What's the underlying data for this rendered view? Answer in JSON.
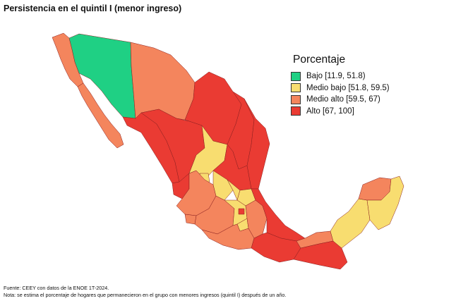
{
  "title": "Persistencia en el quintil I (menor ingreso)",
  "legend": {
    "title": "Porcentaje",
    "items": [
      {
        "key": "bajo",
        "label": "Bajo [11.9, 51.8)",
        "color": "#1fd084"
      },
      {
        "key": "medio_bajo",
        "label": "Medio bajo [51.8, 59.5)",
        "color": "#f8dd70"
      },
      {
        "key": "medio_alto",
        "label": "Medio alto [59.5, 67)",
        "color": "#f4855d"
      },
      {
        "key": "alto",
        "label": "Alto [67, 100]",
        "color": "#ea3b33"
      }
    ]
  },
  "map": {
    "region": "México",
    "states_by_category": {
      "bajo": [
        "Sonora",
        "Tlaxcala"
      ],
      "medio_bajo": [
        "Zacatecas",
        "Aguascalientes",
        "Guanajuato",
        "Querétaro",
        "Hidalgo",
        "Estado de México",
        "Morelos",
        "Campeche",
        "Quintana Roo"
      ],
      "medio_alto": [
        "Baja California",
        "Baja California Sur",
        "Chihuahua",
        "Durango",
        "Nayarit",
        "Jalisco",
        "Colima",
        "Michoacán",
        "San Luis Potosí",
        "Yucatán",
        "Tabasco",
        "Guerrero",
        "Puebla"
      ],
      "alto": [
        "Coahuila",
        "Nuevo León",
        "Tamaulipas",
        "Sinaloa",
        "Veracruz",
        "Oaxaca",
        "Chiapas",
        "Ciudad de México"
      ]
    }
  },
  "footnotes": {
    "source": "Fuente: CEEY con datos de la ENOE 1T-2024.",
    "note": "Nota: se estima el porcentaje de hogares que permanecieron en el grupo con menores ingresos (quintil I) después de un año."
  }
}
